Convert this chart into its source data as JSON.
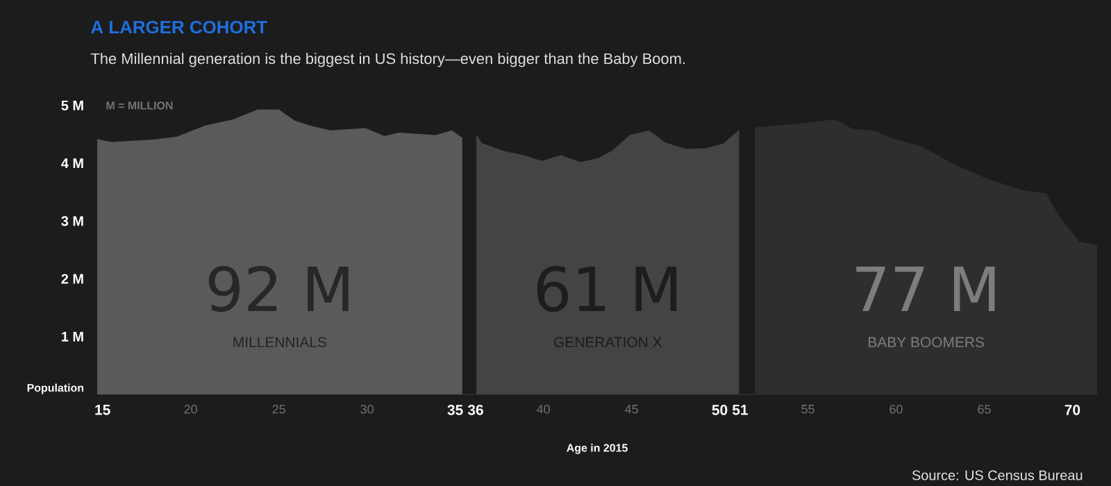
{
  "chart_data": {
    "type": "area",
    "title": "A LARGER COHORT",
    "subtitle": "The Millennial generation is the biggest in US history—even bigger than the Baby Boom.",
    "xlabel": "Age in 2015",
    "ylabel": "Population",
    "series": [
      {
        "name": "MILLENNIALS",
        "color": "#5a5a5a",
        "x": [
          14.7,
          15.5,
          17.9,
          19.2,
          20.8,
          22.4,
          23.8,
          25.0,
          25.9,
          26.8,
          27.9,
          29.9,
          31.0,
          31.8,
          33.9,
          34.8,
          35.4
        ],
        "values": [
          4.42,
          4.37,
          4.41,
          4.46,
          4.65,
          4.76,
          4.93,
          4.93,
          4.74,
          4.65,
          4.57,
          4.61,
          4.47,
          4.53,
          4.49,
          4.57,
          4.44
        ]
      },
      {
        "name": "GENERATION X",
        "color": "#444444",
        "x": [
          36.2,
          36.5,
          37.8,
          38.9,
          39.9,
          41.0,
          42.1,
          43.1,
          43.9,
          44.9,
          46.0,
          46.9,
          48.1,
          49.2,
          50.2,
          51.1
        ],
        "values": [
          4.5,
          4.35,
          4.21,
          4.14,
          4.04,
          4.14,
          4.02,
          4.09,
          4.22,
          4.49,
          4.57,
          4.36,
          4.25,
          4.26,
          4.34,
          4.58
        ]
      },
      {
        "name": "BABY BOOMERS",
        "color": "#2e2e2e",
        "x": [
          52.0,
          54.3,
          56.5,
          57.5,
          58.8,
          60.0,
          61.4,
          63.3,
          65.1,
          67.2,
          68.5,
          69.3,
          70.4,
          71.4
        ],
        "values": [
          4.62,
          4.68,
          4.76,
          4.6,
          4.56,
          4.41,
          4.3,
          3.98,
          3.74,
          3.53,
          3.48,
          3.06,
          2.64,
          2.58
        ]
      }
    ],
    "xlim": [
      14.7,
      71.4
    ],
    "xticks": [
      15,
      20,
      25,
      30,
      35,
      36,
      40,
      45,
      50,
      51,
      55,
      60,
      65,
      70
    ],
    "ylim": [
      0,
      5
    ],
    "yticks": [
      {
        "value": 1,
        "label": "1 M"
      },
      {
        "value": 2,
        "label": "2 M"
      },
      {
        "value": 3,
        "label": "3 M"
      },
      {
        "value": 4,
        "label": "4 M"
      },
      {
        "value": 5,
        "label": "5 M"
      }
    ],
    "annotations": [
      "M = MILLION",
      "92 M",
      "61 M",
      "77 M",
      "Source: US Census Bureau"
    ],
    "legend": false
  }
}
